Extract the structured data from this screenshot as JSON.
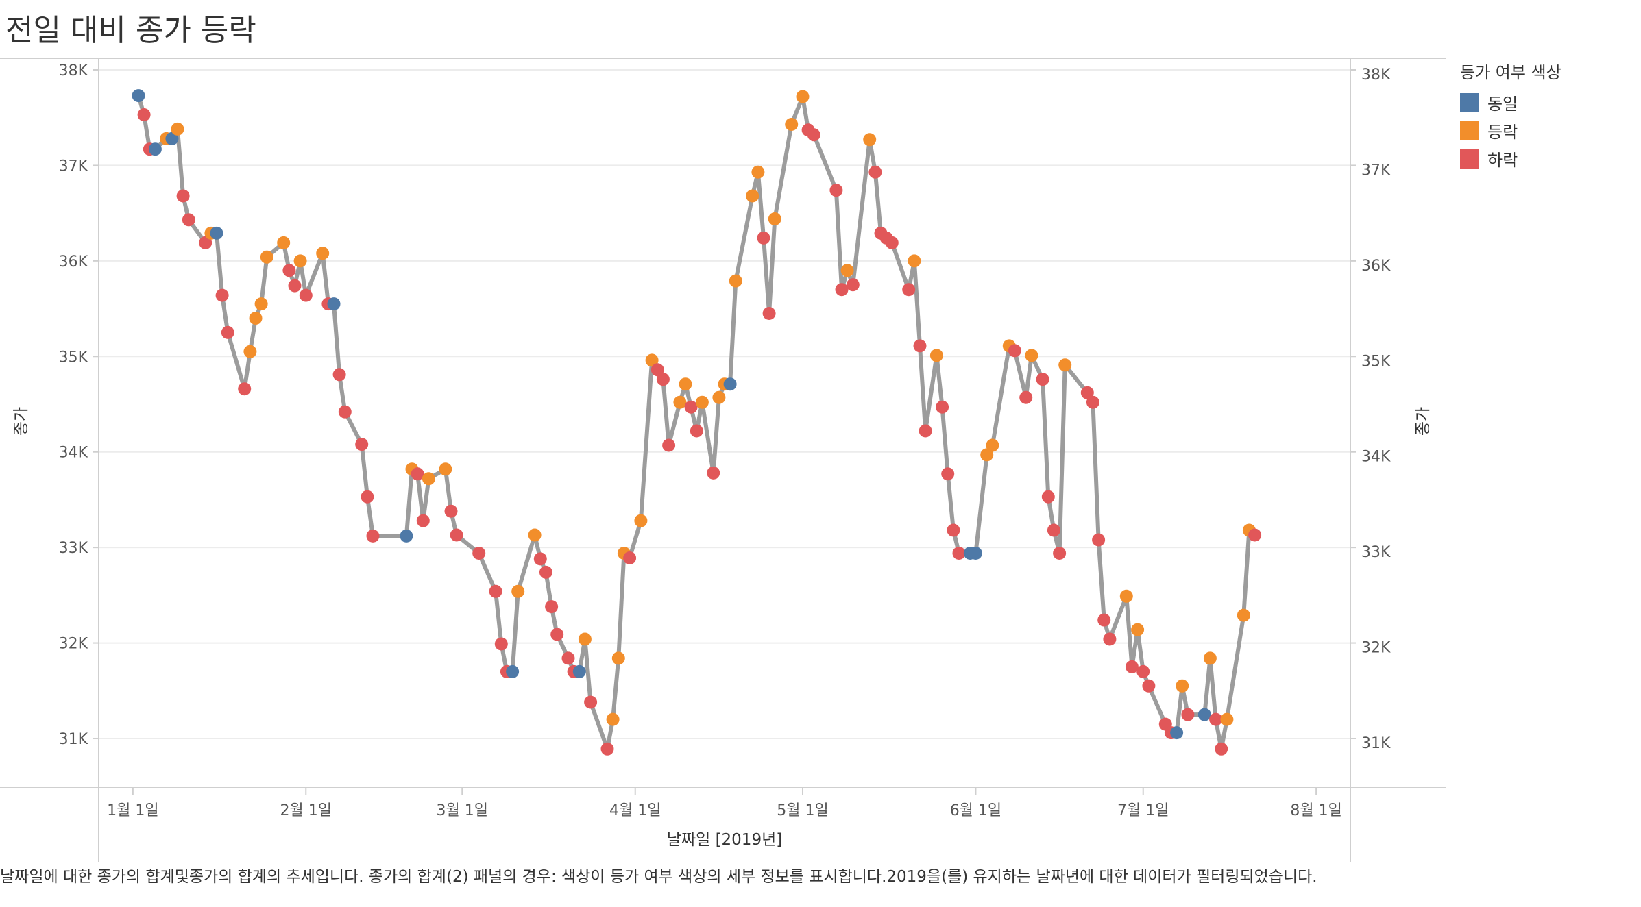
{
  "title": "전일 대비 종가 등락",
  "caption": "날짜일에 대한 종가의 합계및종가의 합계의 추세입니다. 종가의 합계(2) 패널의 경우: 색상이 등가 여부 색상의 세부 정보를 표시합니다.2019을(를) 유지하는 날짜년에 대한 데이터가 필터링되었습니다.",
  "legend": {
    "title": "등가 여부 색상",
    "items": [
      {
        "label": "동일",
        "color": "#4e79a7"
      },
      {
        "label": "등락",
        "color": "#f28e2b"
      },
      {
        "label": "하락",
        "color": "#e15759"
      }
    ]
  },
  "chart_data": {
    "type": "line",
    "title": "전일 대비 종가 등락",
    "xlabel": "날짜일 [2019년]",
    "ylabel_left": "종가",
    "ylabel_right": "종가",
    "ylim": [
      30500,
      38000
    ],
    "xlim": [
      "2018-12-26",
      "2019-08-07"
    ],
    "y_ticks": [
      31000,
      32000,
      33000,
      34000,
      35000,
      36000,
      37000,
      38000
    ],
    "y_tick_labels": [
      "31K",
      "32K",
      "33K",
      "34K",
      "35K",
      "36K",
      "37K",
      "38K"
    ],
    "x_ticks": [
      "2019-01-01",
      "2019-02-01",
      "2019-03-01",
      "2019-04-01",
      "2019-05-01",
      "2019-06-01",
      "2019-07-01",
      "2019-08-01"
    ],
    "x_tick_labels": [
      "1월 1일",
      "2월 1일",
      "3월 1일",
      "4월 1일",
      "5월 1일",
      "6월 1일",
      "7월 1일",
      "8월 1일"
    ],
    "line_color": "#9c9c9c",
    "grid": true,
    "legend_position": "right",
    "colors": {
      "동일": "#4e79a7",
      "등락": "#f28e2b",
      "하락": "#e15759"
    },
    "points": [
      {
        "date": "2019-01-02",
        "close": 37730,
        "status": "동일"
      },
      {
        "date": "2019-01-03",
        "close": 37530,
        "status": "하락"
      },
      {
        "date": "2019-01-04",
        "close": 37170,
        "status": "하락"
      },
      {
        "date": "2019-01-05",
        "close": 37170,
        "status": "동일"
      },
      {
        "date": "2019-01-07",
        "close": 37280,
        "status": "등락"
      },
      {
        "date": "2019-01-08",
        "close": 37280,
        "status": "동일"
      },
      {
        "date": "2019-01-09",
        "close": 37380,
        "status": "등락"
      },
      {
        "date": "2019-01-10",
        "close": 36680,
        "status": "하락"
      },
      {
        "date": "2019-01-11",
        "close": 36430,
        "status": "하락"
      },
      {
        "date": "2019-01-14",
        "close": 36190,
        "status": "하락"
      },
      {
        "date": "2019-01-15",
        "close": 36290,
        "status": "등락"
      },
      {
        "date": "2019-01-16",
        "close": 36290,
        "status": "동일"
      },
      {
        "date": "2019-01-17",
        "close": 35640,
        "status": "하락"
      },
      {
        "date": "2019-01-18",
        "close": 35250,
        "status": "하락"
      },
      {
        "date": "2019-01-21",
        "close": 34660,
        "status": "하락"
      },
      {
        "date": "2019-01-22",
        "close": 35050,
        "status": "등락"
      },
      {
        "date": "2019-01-23",
        "close": 35400,
        "status": "등락"
      },
      {
        "date": "2019-01-24",
        "close": 35550,
        "status": "등락"
      },
      {
        "date": "2019-01-25",
        "close": 36040,
        "status": "등락"
      },
      {
        "date": "2019-01-28",
        "close": 36190,
        "status": "등락"
      },
      {
        "date": "2019-01-29",
        "close": 35900,
        "status": "하락"
      },
      {
        "date": "2019-01-30",
        "close": 35740,
        "status": "하락"
      },
      {
        "date": "2019-01-31",
        "close": 36000,
        "status": "등락"
      },
      {
        "date": "2019-02-01",
        "close": 35640,
        "status": "하락"
      },
      {
        "date": "2019-02-04",
        "close": 36080,
        "status": "등락"
      },
      {
        "date": "2019-02-05",
        "close": 35550,
        "status": "하락"
      },
      {
        "date": "2019-02-06",
        "close": 35550,
        "status": "동일"
      },
      {
        "date": "2019-02-07",
        "close": 34810,
        "status": "하락"
      },
      {
        "date": "2019-02-08",
        "close": 34420,
        "status": "하락"
      },
      {
        "date": "2019-02-11",
        "close": 34080,
        "status": "하락"
      },
      {
        "date": "2019-02-12",
        "close": 33530,
        "status": "하락"
      },
      {
        "date": "2019-02-13",
        "close": 33120,
        "status": "하락"
      },
      {
        "date": "2019-02-19",
        "close": 33120,
        "status": "동일"
      },
      {
        "date": "2019-02-20",
        "close": 33820,
        "status": "등락"
      },
      {
        "date": "2019-02-21",
        "close": 33770,
        "status": "하락"
      },
      {
        "date": "2019-02-22",
        "close": 33280,
        "status": "하락"
      },
      {
        "date": "2019-02-23",
        "close": 33720,
        "status": "등락"
      },
      {
        "date": "2019-02-26",
        "close": 33820,
        "status": "등락"
      },
      {
        "date": "2019-02-27",
        "close": 33380,
        "status": "하락"
      },
      {
        "date": "2019-02-28",
        "close": 33130,
        "status": "하락"
      },
      {
        "date": "2019-03-04",
        "close": 32940,
        "status": "하락"
      },
      {
        "date": "2019-03-07",
        "close": 32540,
        "status": "하락"
      },
      {
        "date": "2019-03-08",
        "close": 31990,
        "status": "하락"
      },
      {
        "date": "2019-03-09",
        "close": 31700,
        "status": "하락"
      },
      {
        "date": "2019-03-10",
        "close": 31700,
        "status": "동일"
      },
      {
        "date": "2019-03-11",
        "close": 32540,
        "status": "등락"
      },
      {
        "date": "2019-03-14",
        "close": 33130,
        "status": "등락"
      },
      {
        "date": "2019-03-15",
        "close": 32880,
        "status": "하락"
      },
      {
        "date": "2019-03-16",
        "close": 32740,
        "status": "하락"
      },
      {
        "date": "2019-03-17",
        "close": 32380,
        "status": "하락"
      },
      {
        "date": "2019-03-18",
        "close": 32090,
        "status": "하락"
      },
      {
        "date": "2019-03-20",
        "close": 31840,
        "status": "하락"
      },
      {
        "date": "2019-03-21",
        "close": 31700,
        "status": "하락"
      },
      {
        "date": "2019-03-22",
        "close": 31700,
        "status": "동일"
      },
      {
        "date": "2019-03-23",
        "close": 32040,
        "status": "등락"
      },
      {
        "date": "2019-03-24",
        "close": 31380,
        "status": "하락"
      },
      {
        "date": "2019-03-27",
        "close": 30890,
        "status": "하락"
      },
      {
        "date": "2019-03-28",
        "close": 31200,
        "status": "등락"
      },
      {
        "date": "2019-03-29",
        "close": 31840,
        "status": "등락"
      },
      {
        "date": "2019-03-30",
        "close": 32940,
        "status": "등락"
      },
      {
        "date": "2019-03-31",
        "close": 32890,
        "status": "하락"
      },
      {
        "date": "2019-04-02",
        "close": 33280,
        "status": "등락"
      },
      {
        "date": "2019-04-04",
        "close": 34960,
        "status": "등락"
      },
      {
        "date": "2019-04-05",
        "close": 34860,
        "status": "하락"
      },
      {
        "date": "2019-04-06",
        "close": 34760,
        "status": "하락"
      },
      {
        "date": "2019-04-07",
        "close": 34070,
        "status": "하락"
      },
      {
        "date": "2019-04-09",
        "close": 34520,
        "status": "등락"
      },
      {
        "date": "2019-04-10",
        "close": 34710,
        "status": "등락"
      },
      {
        "date": "2019-04-11",
        "close": 34470,
        "status": "하락"
      },
      {
        "date": "2019-04-12",
        "close": 34220,
        "status": "하락"
      },
      {
        "date": "2019-04-13",
        "close": 34520,
        "status": "등락"
      },
      {
        "date": "2019-04-15",
        "close": 33780,
        "status": "하락"
      },
      {
        "date": "2019-04-16",
        "close": 34570,
        "status": "등락"
      },
      {
        "date": "2019-04-17",
        "close": 34710,
        "status": "등락"
      },
      {
        "date": "2019-04-18",
        "close": 34710,
        "status": "동일"
      },
      {
        "date": "2019-04-19",
        "close": 35790,
        "status": "등락"
      },
      {
        "date": "2019-04-22",
        "close": 36680,
        "status": "등락"
      },
      {
        "date": "2019-04-23",
        "close": 36930,
        "status": "등락"
      },
      {
        "date": "2019-04-24",
        "close": 36240,
        "status": "하락"
      },
      {
        "date": "2019-04-25",
        "close": 35450,
        "status": "하락"
      },
      {
        "date": "2019-04-26",
        "close": 36440,
        "status": "등락"
      },
      {
        "date": "2019-04-29",
        "close": 37430,
        "status": "등락"
      },
      {
        "date": "2019-05-01",
        "close": 37720,
        "status": "등락"
      },
      {
        "date": "2019-05-02",
        "close": 37370,
        "status": "하락"
      },
      {
        "date": "2019-05-03",
        "close": 37320,
        "status": "하락"
      },
      {
        "date": "2019-05-07",
        "close": 36740,
        "status": "하락"
      },
      {
        "date": "2019-05-08",
        "close": 35700,
        "status": "하락"
      },
      {
        "date": "2019-05-09",
        "close": 35900,
        "status": "등락"
      },
      {
        "date": "2019-05-10",
        "close": 35750,
        "status": "하락"
      },
      {
        "date": "2019-05-13",
        "close": 37270,
        "status": "등락"
      },
      {
        "date": "2019-05-14",
        "close": 36930,
        "status": "하락"
      },
      {
        "date": "2019-05-15",
        "close": 36290,
        "status": "하락"
      },
      {
        "date": "2019-05-16",
        "close": 36240,
        "status": "하락"
      },
      {
        "date": "2019-05-17",
        "close": 36190,
        "status": "하락"
      },
      {
        "date": "2019-05-20",
        "close": 35700,
        "status": "하락"
      },
      {
        "date": "2019-05-21",
        "close": 36000,
        "status": "등락"
      },
      {
        "date": "2019-05-22",
        "close": 35110,
        "status": "하락"
      },
      {
        "date": "2019-05-23",
        "close": 34220,
        "status": "하락"
      },
      {
        "date": "2019-05-25",
        "close": 35010,
        "status": "등락"
      },
      {
        "date": "2019-05-26",
        "close": 34470,
        "status": "하락"
      },
      {
        "date": "2019-05-27",
        "close": 33770,
        "status": "하락"
      },
      {
        "date": "2019-05-28",
        "close": 33180,
        "status": "하락"
      },
      {
        "date": "2019-05-29",
        "close": 32940,
        "status": "하락"
      },
      {
        "date": "2019-05-31",
        "close": 32940,
        "status": "동일"
      },
      {
        "date": "2019-06-01",
        "close": 32940,
        "status": "동일"
      },
      {
        "date": "2019-06-03",
        "close": 33970,
        "status": "등락"
      },
      {
        "date": "2019-06-04",
        "close": 34070,
        "status": "등락"
      },
      {
        "date": "2019-06-07",
        "close": 35110,
        "status": "등락"
      },
      {
        "date": "2019-06-08",
        "close": 35060,
        "status": "하락"
      },
      {
        "date": "2019-06-10",
        "close": 34570,
        "status": "하락"
      },
      {
        "date": "2019-06-11",
        "close": 35010,
        "status": "등락"
      },
      {
        "date": "2019-06-13",
        "close": 34760,
        "status": "하락"
      },
      {
        "date": "2019-06-14",
        "close": 33530,
        "status": "하락"
      },
      {
        "date": "2019-06-15",
        "close": 33180,
        "status": "하락"
      },
      {
        "date": "2019-06-16",
        "close": 32940,
        "status": "하락"
      },
      {
        "date": "2019-06-17",
        "close": 34910,
        "status": "등락"
      },
      {
        "date": "2019-06-21",
        "close": 34620,
        "status": "하락"
      },
      {
        "date": "2019-06-22",
        "close": 34520,
        "status": "하락"
      },
      {
        "date": "2019-06-23",
        "close": 33080,
        "status": "하락"
      },
      {
        "date": "2019-06-24",
        "close": 32240,
        "status": "하락"
      },
      {
        "date": "2019-06-25",
        "close": 32040,
        "status": "하락"
      },
      {
        "date": "2019-06-28",
        "close": 32490,
        "status": "등락"
      },
      {
        "date": "2019-06-29",
        "close": 31750,
        "status": "하락"
      },
      {
        "date": "2019-06-30",
        "close": 32140,
        "status": "등락"
      },
      {
        "date": "2019-07-01",
        "close": 31700,
        "status": "하락"
      },
      {
        "date": "2019-07-02",
        "close": 31550,
        "status": "하락"
      },
      {
        "date": "2019-07-05",
        "close": 31150,
        "status": "하락"
      },
      {
        "date": "2019-07-06",
        "close": 31060,
        "status": "하락"
      },
      {
        "date": "2019-07-07",
        "close": 31060,
        "status": "동일"
      },
      {
        "date": "2019-07-08",
        "close": 31550,
        "status": "등락"
      },
      {
        "date": "2019-07-09",
        "close": 31250,
        "status": "하락"
      },
      {
        "date": "2019-07-12",
        "close": 31250,
        "status": "동일"
      },
      {
        "date": "2019-07-13",
        "close": 31840,
        "status": "등락"
      },
      {
        "date": "2019-07-14",
        "close": 31200,
        "status": "하락"
      },
      {
        "date": "2019-07-15",
        "close": 30890,
        "status": "하락"
      },
      {
        "date": "2019-07-16",
        "close": 31200,
        "status": "등락"
      },
      {
        "date": "2019-07-19",
        "close": 32290,
        "status": "등락"
      },
      {
        "date": "2019-07-20",
        "close": 33180,
        "status": "등락"
      },
      {
        "date": "2019-07-21",
        "close": 33130,
        "status": "하락"
      }
    ]
  }
}
